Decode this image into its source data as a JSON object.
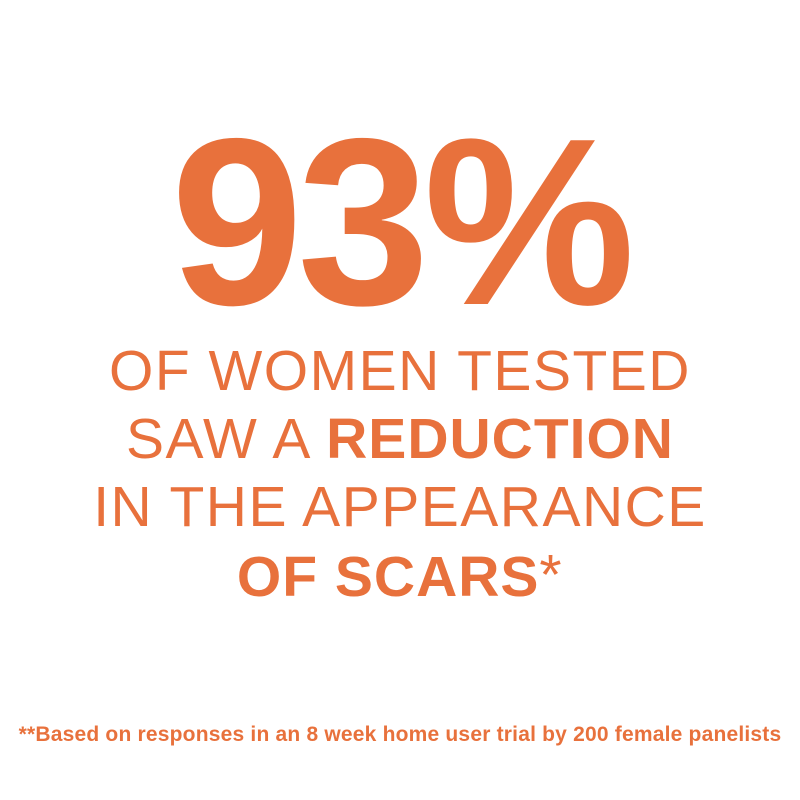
{
  "colors": {
    "accent_orange": "#E8713C",
    "background": "#FFFFFF"
  },
  "headline": {
    "stat_value": "93%"
  },
  "message": {
    "line1": "OF WOMEN TESTED",
    "line2_normal": "SAW A ",
    "line2_bold": "REDUCTION",
    "line3": "IN THE APPEARANCE",
    "line4_bold": "OF SCARS",
    "line4_asterisk": "*"
  },
  "footnote": {
    "text": "**Based on responses in an 8 week home user trial by 200 female panelists"
  }
}
